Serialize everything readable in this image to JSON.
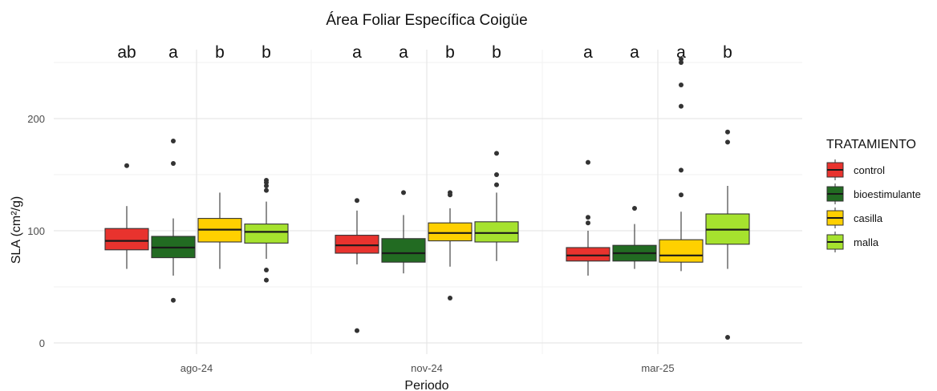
{
  "chart_data": {
    "type": "boxplot",
    "title": "Área Foliar Específica Coigüe",
    "xlabel": "Periodo",
    "ylabel": "SLA (cm²/g)",
    "ylim": [
      -10,
      260
    ],
    "yticks": [
      0,
      100,
      200
    ],
    "grid": true,
    "legend_position": "right",
    "categories": [
      "ago-24",
      "nov-24",
      "mar-25"
    ],
    "legend_title": "TRATAMIENTO",
    "series": [
      {
        "name": "control",
        "color": "#E8332E",
        "boxes": [
          {
            "min": 66,
            "q1": 83,
            "median": 91,
            "q3": 102,
            "max": 122,
            "outliers": [
              158
            ]
          },
          {
            "min": 70,
            "q1": 80,
            "median": 87,
            "q3": 96,
            "max": 118,
            "outliers": [
              127,
              11
            ]
          },
          {
            "min": 60,
            "q1": 73,
            "median": 78,
            "q3": 85,
            "max": 100,
            "outliers": [
              161,
              112,
              107
            ]
          }
        ]
      },
      {
        "name": "bioestimulante",
        "color": "#226B22",
        "boxes": [
          {
            "min": 60,
            "q1": 76,
            "median": 85,
            "q3": 95,
            "max": 111,
            "outliers": [
              180,
              160,
              38
            ]
          },
          {
            "min": 62,
            "q1": 72,
            "median": 80,
            "q3": 93,
            "max": 114,
            "outliers": [
              134
            ]
          },
          {
            "min": 66,
            "q1": 73,
            "median": 80,
            "q3": 87,
            "max": 106,
            "outliers": [
              120
            ]
          }
        ]
      },
      {
        "name": "casilla",
        "color": "#FFD000",
        "boxes": [
          {
            "min": 66,
            "q1": 90,
            "median": 101,
            "q3": 111,
            "max": 134,
            "outliers": []
          },
          {
            "min": 68,
            "q1": 91,
            "median": 98,
            "q3": 107,
            "max": 120,
            "outliers": [
              134,
              132,
              40
            ]
          },
          {
            "min": 64,
            "q1": 72,
            "median": 78,
            "q3": 92,
            "max": 117,
            "outliers": [
              253,
              250,
              230,
              211,
              154,
              132
            ]
          }
        ]
      },
      {
        "name": "malla",
        "color": "#A6E22E",
        "boxes": [
          {
            "min": 75,
            "q1": 89,
            "median": 99,
            "q3": 106,
            "max": 126,
            "outliers": [
              145,
              143,
              140,
              136,
              65,
              56
            ]
          },
          {
            "min": 73,
            "q1": 90,
            "median": 98,
            "q3": 108,
            "max": 134,
            "outliers": [
              169,
              150,
              141
            ]
          },
          {
            "min": 66,
            "q1": 88,
            "median": 101,
            "q3": 115,
            "max": 140,
            "outliers": [
              188,
              179,
              5
            ]
          }
        ]
      }
    ],
    "annotations": [
      [
        "ab",
        "a",
        "b",
        "b"
      ],
      [
        "a",
        "a",
        "b",
        "b"
      ],
      [
        "a",
        "a",
        "a",
        "b"
      ]
    ]
  }
}
